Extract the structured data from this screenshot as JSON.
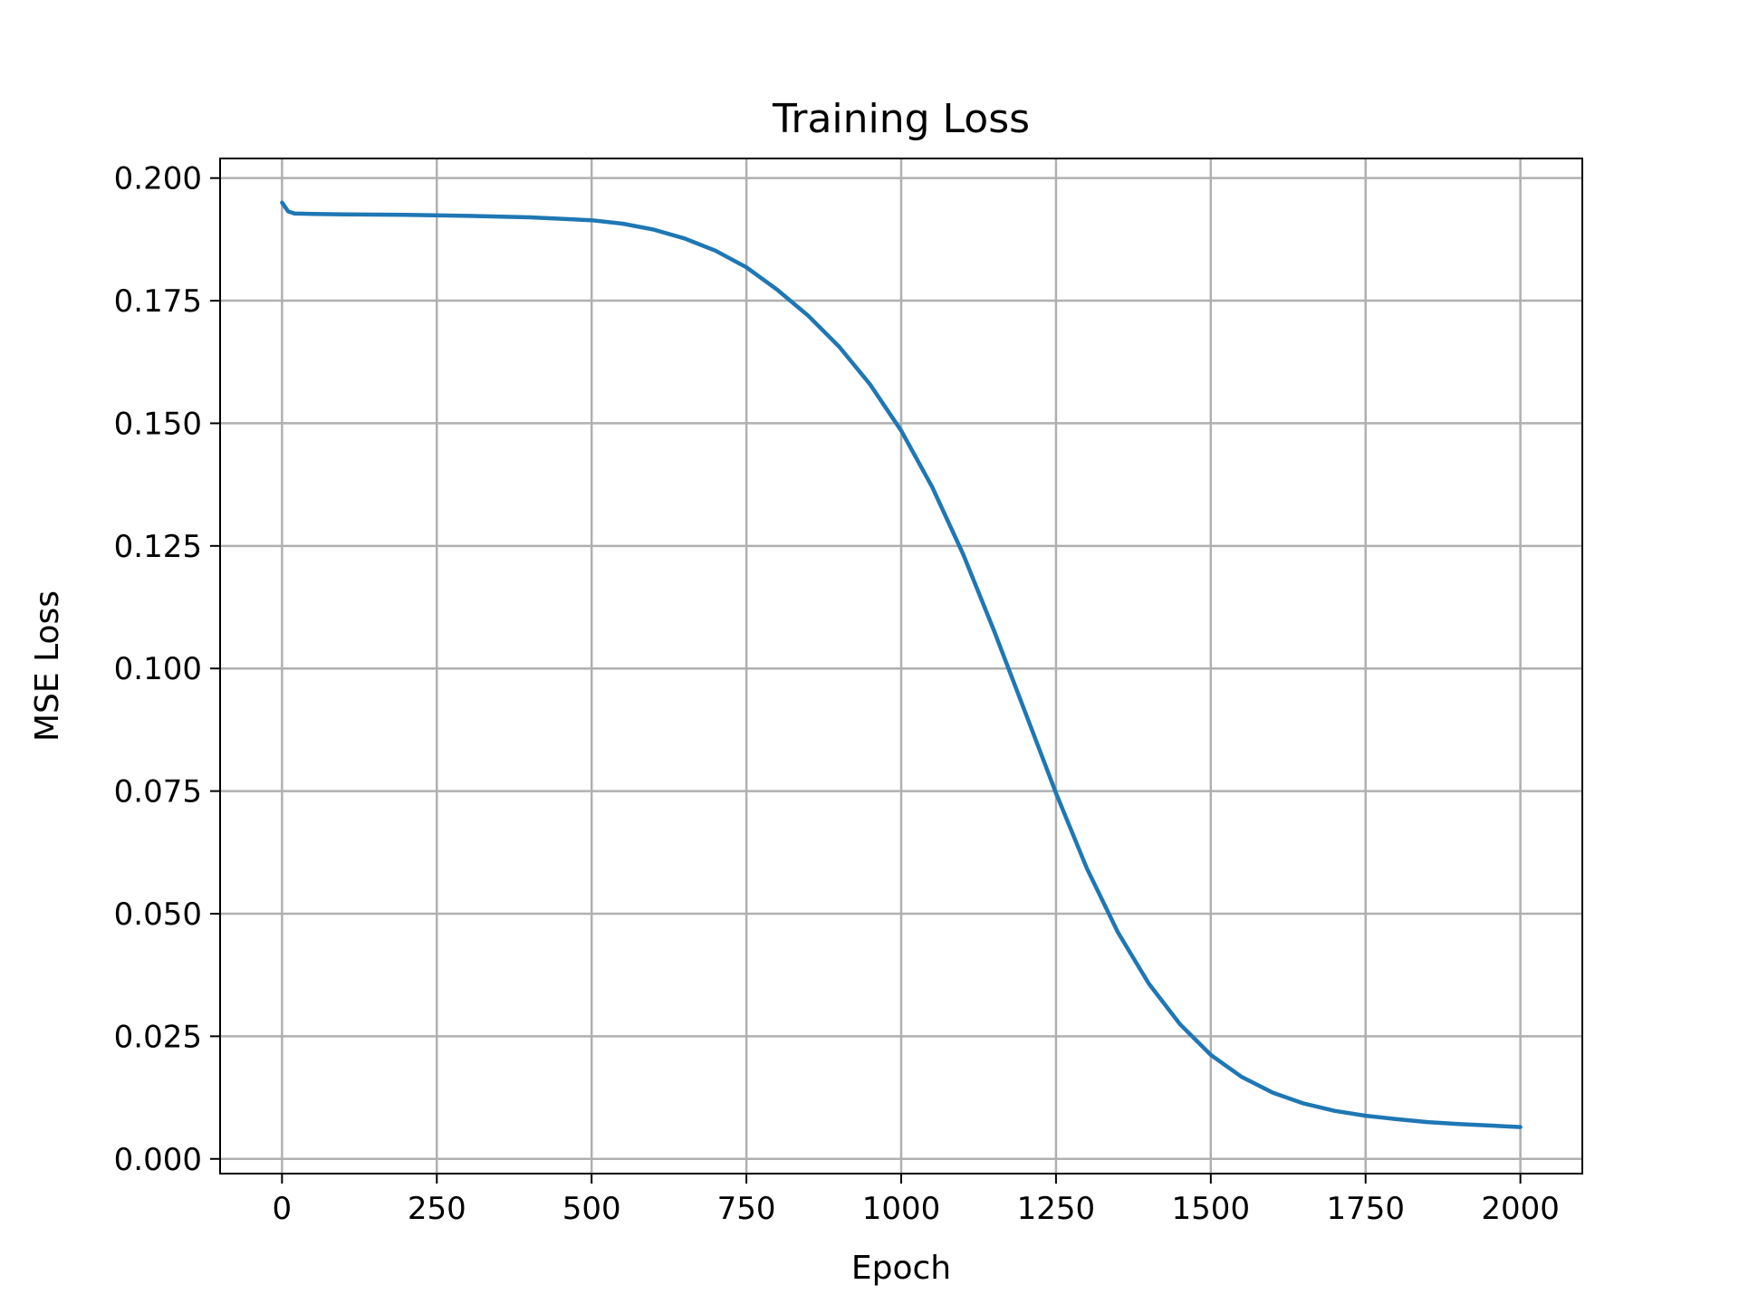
{
  "chart_data": {
    "type": "line",
    "title": "Training Loss",
    "xlabel": "Epoch",
    "ylabel": "MSE Loss",
    "xlim": [
      -100,
      2100
    ],
    "ylim": [
      -0.003,
      0.204
    ],
    "xticks": [
      0,
      250,
      500,
      750,
      1000,
      1250,
      1500,
      1750,
      2000
    ],
    "xtick_labels": [
      "0",
      "250",
      "500",
      "750",
      "1000",
      "1250",
      "1500",
      "1750",
      "2000"
    ],
    "yticks": [
      0.0,
      0.025,
      0.05,
      0.075,
      0.1,
      0.125,
      0.15,
      0.175,
      0.2
    ],
    "ytick_labels": [
      "0.000",
      "0.025",
      "0.050",
      "0.075",
      "0.100",
      "0.125",
      "0.150",
      "0.175",
      "0.200"
    ],
    "grid": true,
    "line_color": "#1f77b4",
    "grid_color": "#b0b0b0",
    "series": [
      {
        "x": [
          0,
          10,
          20,
          50,
          100,
          200,
          300,
          400,
          500,
          550,
          600,
          650,
          700,
          750,
          800,
          850,
          900,
          950,
          1000,
          1050,
          1100,
          1150,
          1200,
          1250,
          1300,
          1350,
          1400,
          1450,
          1500,
          1550,
          1600,
          1650,
          1700,
          1750,
          1800,
          1850,
          1900,
          1950,
          2000
        ],
        "y": [
          0.195,
          0.1932,
          0.1928,
          0.1927,
          0.1926,
          0.1925,
          0.1923,
          0.192,
          0.1914,
          0.1907,
          0.1895,
          0.1877,
          0.1852,
          0.1818,
          0.1772,
          0.1719,
          0.1656,
          0.1579,
          0.1485,
          0.137,
          0.1233,
          0.1077,
          0.0912,
          0.0746,
          0.0592,
          0.0462,
          0.0357,
          0.0275,
          0.0212,
          0.0167,
          0.0135,
          0.0113,
          0.0098,
          0.0088,
          0.0081,
          0.0075,
          0.0071,
          0.0068,
          0.0065
        ]
      }
    ]
  }
}
